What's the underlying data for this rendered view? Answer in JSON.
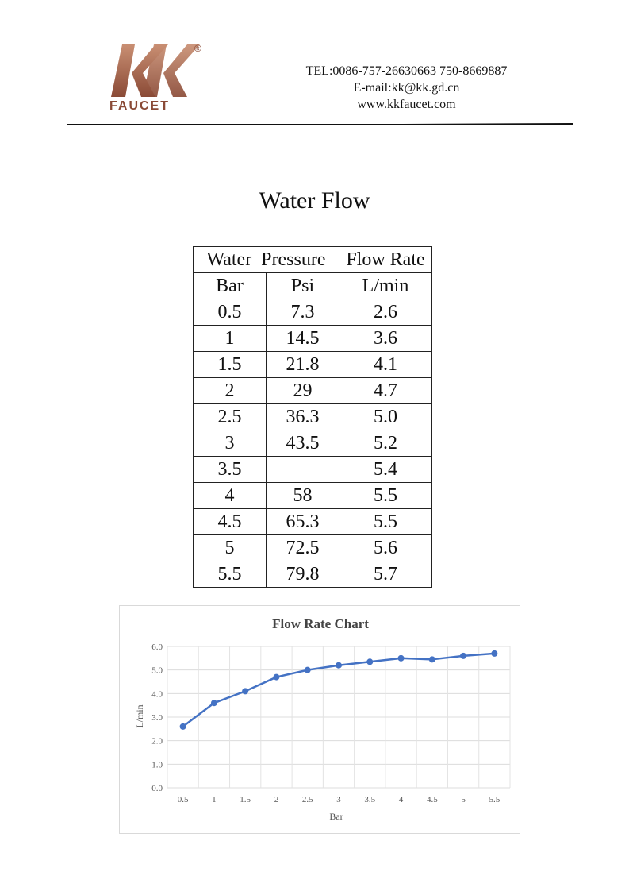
{
  "header": {
    "logo_text": "FAUCET",
    "logo_mark": "KK",
    "registered_symbol": "®",
    "brand_color_dark": "#8a4a36",
    "brand_color_light": "#c98f73",
    "contact": {
      "tel": "TEL:0086-757-26630663 750-8669887",
      "email": "E-mail:kk@kk.gd.cn",
      "website": "www.kkfaucet.com"
    }
  },
  "title": "Water Flow",
  "table": {
    "header_row": {
      "water_pressure": "Water  Pressure",
      "flow_rate": "Flow Rate"
    },
    "unit_row": {
      "bar": "Bar",
      "psi": "Psi",
      "lmin": "L/min"
    },
    "rows": [
      {
        "bar": "0.5",
        "psi": "7.3",
        "flow": "2.6"
      },
      {
        "bar": "1",
        "psi": "14.5",
        "flow": "3.6"
      },
      {
        "bar": "1.5",
        "psi": "21.8",
        "flow": "4.1"
      },
      {
        "bar": "2",
        "psi": "29",
        "flow": "4.7"
      },
      {
        "bar": "2.5",
        "psi": "36.3",
        "flow": "5.0"
      },
      {
        "bar": "3",
        "psi": "43.5",
        "flow": "5.2"
      },
      {
        "bar": "3.5",
        "psi": "",
        "flow": "5.4"
      },
      {
        "bar": "4",
        "psi": "58",
        "flow": "5.5"
      },
      {
        "bar": "4.5",
        "psi": "65.3",
        "flow": "5.5"
      },
      {
        "bar": "5",
        "psi": "72.5",
        "flow": "5.6"
      },
      {
        "bar": "5.5",
        "psi": "79.8",
        "flow": "5.7"
      }
    ]
  },
  "chart_data": {
    "type": "line",
    "title": "Flow Rate Chart",
    "xlabel": "Bar",
    "ylabel": "L/min",
    "categories": [
      "0.5",
      "1",
      "1.5",
      "2",
      "2.5",
      "3",
      "3.5",
      "4",
      "4.5",
      "5",
      "5.5"
    ],
    "values": [
      2.6,
      3.6,
      4.1,
      4.7,
      5.0,
      5.2,
      5.35,
      5.5,
      5.45,
      5.6,
      5.7
    ],
    "ylim": [
      0,
      6
    ],
    "yticks": [
      "0.0",
      "1.0",
      "2.0",
      "3.0",
      "4.0",
      "5.0",
      "6.0"
    ],
    "grid": true,
    "legend": "none",
    "line_color": "#4472c4"
  }
}
